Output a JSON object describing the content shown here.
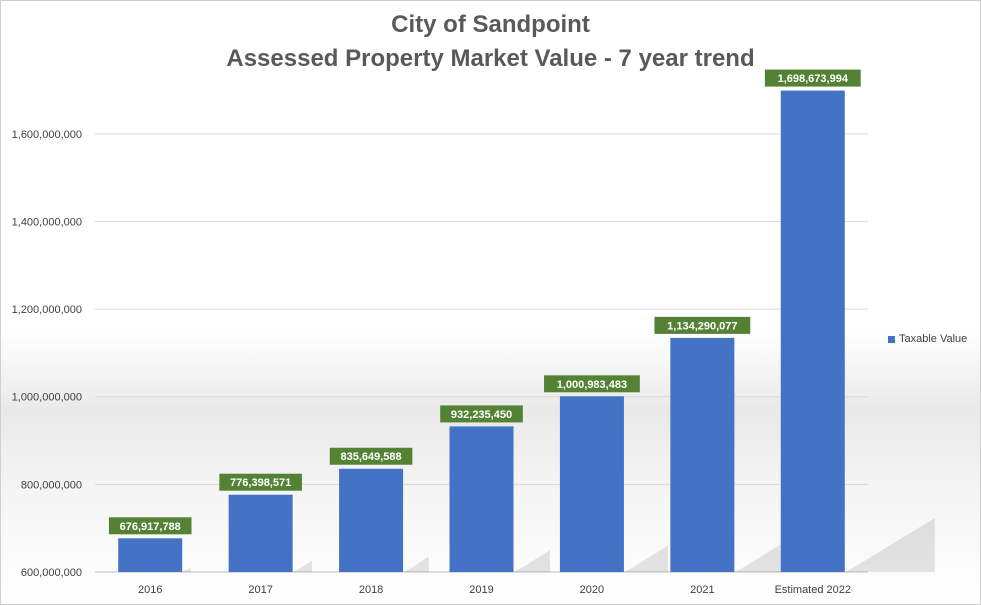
{
  "chart_data": {
    "type": "bar",
    "title": "City of Sandpoint",
    "subtitle": "Assessed Property Market Value - 7 year trend",
    "categories": [
      "2016",
      "2017",
      "2018",
      "2019",
      "2020",
      "2021",
      "Estimated 2022"
    ],
    "series": [
      {
        "name": "Taxable Value",
        "values": [
          676917788,
          776398571,
          835649588,
          932235450,
          1000983483,
          1134290077,
          1698673994
        ],
        "data_labels": [
          "676,917,788",
          "776,398,571",
          "835,649,588",
          "932,235,450",
          "1,000,983,483",
          "1,134,290,077",
          "1,698,673,994"
        ]
      }
    ],
    "xlabel": "",
    "ylabel": "",
    "ylim": [
      600000000,
      1700000000
    ],
    "yticks": [
      600000000,
      800000000,
      1000000000,
      1200000000,
      1400000000,
      1600000000
    ],
    "ytick_labels": [
      "600,000,000",
      "800,000,000",
      "1,000,000,000",
      "1,200,000,000",
      "1,400,000,000",
      "1,600,000,000"
    ],
    "grid": true,
    "legend_position": "right",
    "colors": {
      "bar": "#4472c4",
      "data_label_bg": "#548235",
      "data_label_text": "#ffffff",
      "grid": "#d9d9d9",
      "axis_text": "#404040",
      "title": "#595959"
    }
  }
}
